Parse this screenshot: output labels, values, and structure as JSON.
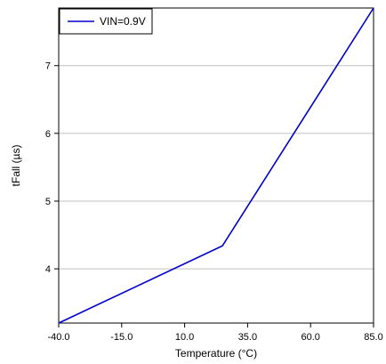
{
  "chart_data": {
    "type": "line",
    "title": "",
    "xlabel": "Temperature (°C)",
    "ylabel": "tFall (µs)",
    "xlim": [
      -40,
      85
    ],
    "ylim": [
      3.2,
      7.85
    ],
    "xticks": [
      -40,
      -15,
      10,
      35,
      60,
      85
    ],
    "xtick_labels": [
      "-40.0",
      "-15.0",
      "10.0",
      "35.0",
      "60.0",
      "85.0"
    ],
    "yticks": [
      4,
      5,
      6,
      7
    ],
    "ytick_labels": [
      "4",
      "5",
      "6",
      "7"
    ],
    "grid": "horizontal",
    "legend_position": "top-left",
    "series": [
      {
        "name": "VIN=0.9V",
        "color": "#0000cc",
        "x": [
          -40,
          25,
          85
        ],
        "y": [
          3.2,
          4.34,
          7.85
        ]
      }
    ]
  }
}
